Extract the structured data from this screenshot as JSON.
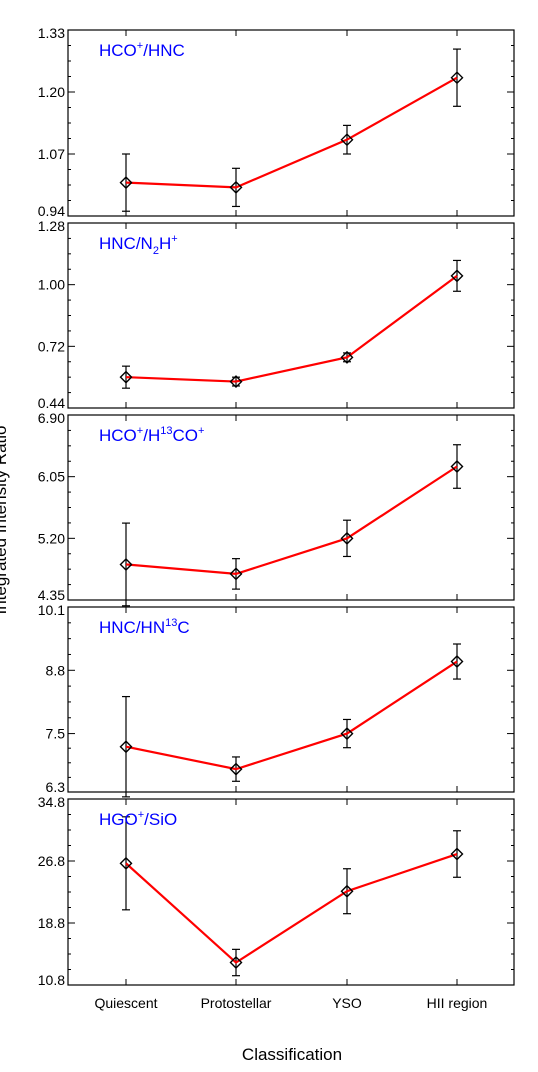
{
  "figure": {
    "xlabel": "Classification",
    "ylabel": "Integrated Intensity Ratio",
    "colors": {
      "line": "#ff0000",
      "marker": "#000000",
      "label": "#0000ff",
      "frame": "#000000"
    }
  },
  "chart_data": [
    {
      "type": "line",
      "label": {
        "base": "HCO",
        "parts": [
          [
            "HCO",
            ""
          ],
          [
            "+",
            "sup"
          ],
          [
            "/HNC",
            ""
          ]
        ]
      },
      "categories": [
        "Quiescent",
        "Protostellar",
        "YSO",
        "HII region"
      ],
      "values": [
        1.01,
        1.0,
        1.1,
        1.23
      ],
      "errors": [
        0.06,
        0.04,
        0.03,
        0.06
      ],
      "ylim": [
        0.94,
        1.33
      ],
      "yticks": [
        "0.94",
        "1.07",
        "1.20",
        "1.33"
      ]
    },
    {
      "type": "line",
      "label": {
        "parts": [
          [
            "HNC/N",
            ""
          ],
          [
            "2",
            "sub"
          ],
          [
            "H",
            ""
          ],
          [
            "+",
            "sup"
          ]
        ]
      },
      "categories": [
        "Quiescent",
        "Protostellar",
        "YSO",
        "HII region"
      ],
      "values": [
        0.58,
        0.56,
        0.67,
        1.04
      ],
      "errors": [
        0.05,
        0.02,
        0.02,
        0.07
      ],
      "ylim": [
        0.44,
        1.28
      ],
      "yticks": [
        "0.44",
        "0.72",
        "1.00",
        "1.28"
      ]
    },
    {
      "type": "line",
      "label": {
        "parts": [
          [
            "HCO",
            ""
          ],
          [
            "+",
            "sup"
          ],
          [
            "/H",
            ""
          ],
          [
            "13",
            "sup"
          ],
          [
            "CO",
            ""
          ],
          [
            "+",
            "sup"
          ]
        ]
      },
      "categories": [
        "Quiescent",
        "Protostellar",
        "YSO",
        "HII region"
      ],
      "values": [
        4.84,
        4.71,
        5.2,
        6.19
      ],
      "errors": [
        0.57,
        0.21,
        0.25,
        0.3
      ],
      "ylim": [
        4.35,
        6.9
      ],
      "yticks": [
        "4.35",
        "5.20",
        "6.05",
        "6.90"
      ]
    },
    {
      "type": "line",
      "label": {
        "parts": [
          [
            "HNC/HN",
            ""
          ],
          [
            "13",
            "sup"
          ],
          [
            "C",
            ""
          ]
        ]
      },
      "categories": [
        "Quiescent",
        "Protostellar",
        "YSO",
        "HII region"
      ],
      "values": [
        7.23,
        6.77,
        7.5,
        8.98
      ],
      "errors": [
        1.03,
        0.25,
        0.29,
        0.36
      ],
      "ylim": [
        6.3,
        10.1
      ],
      "yticks": [
        "6.3",
        "7.5",
        "8.8",
        "10.1"
      ]
    },
    {
      "type": "line",
      "label": {
        "parts": [
          [
            "HGO",
            ""
          ],
          [
            "+",
            "sup"
          ],
          [
            "/SiO",
            ""
          ]
        ]
      },
      "categories": [
        "Quiescent",
        "Protostellar",
        "YSO",
        "HII region"
      ],
      "values": [
        26.5,
        13.7,
        22.9,
        27.7
      ],
      "errors": [
        6.0,
        1.7,
        2.9,
        3.0
      ],
      "ylim": [
        10.8,
        34.8
      ],
      "yticks": [
        "10.8",
        "18.8",
        "26.8",
        "34.8"
      ]
    }
  ]
}
